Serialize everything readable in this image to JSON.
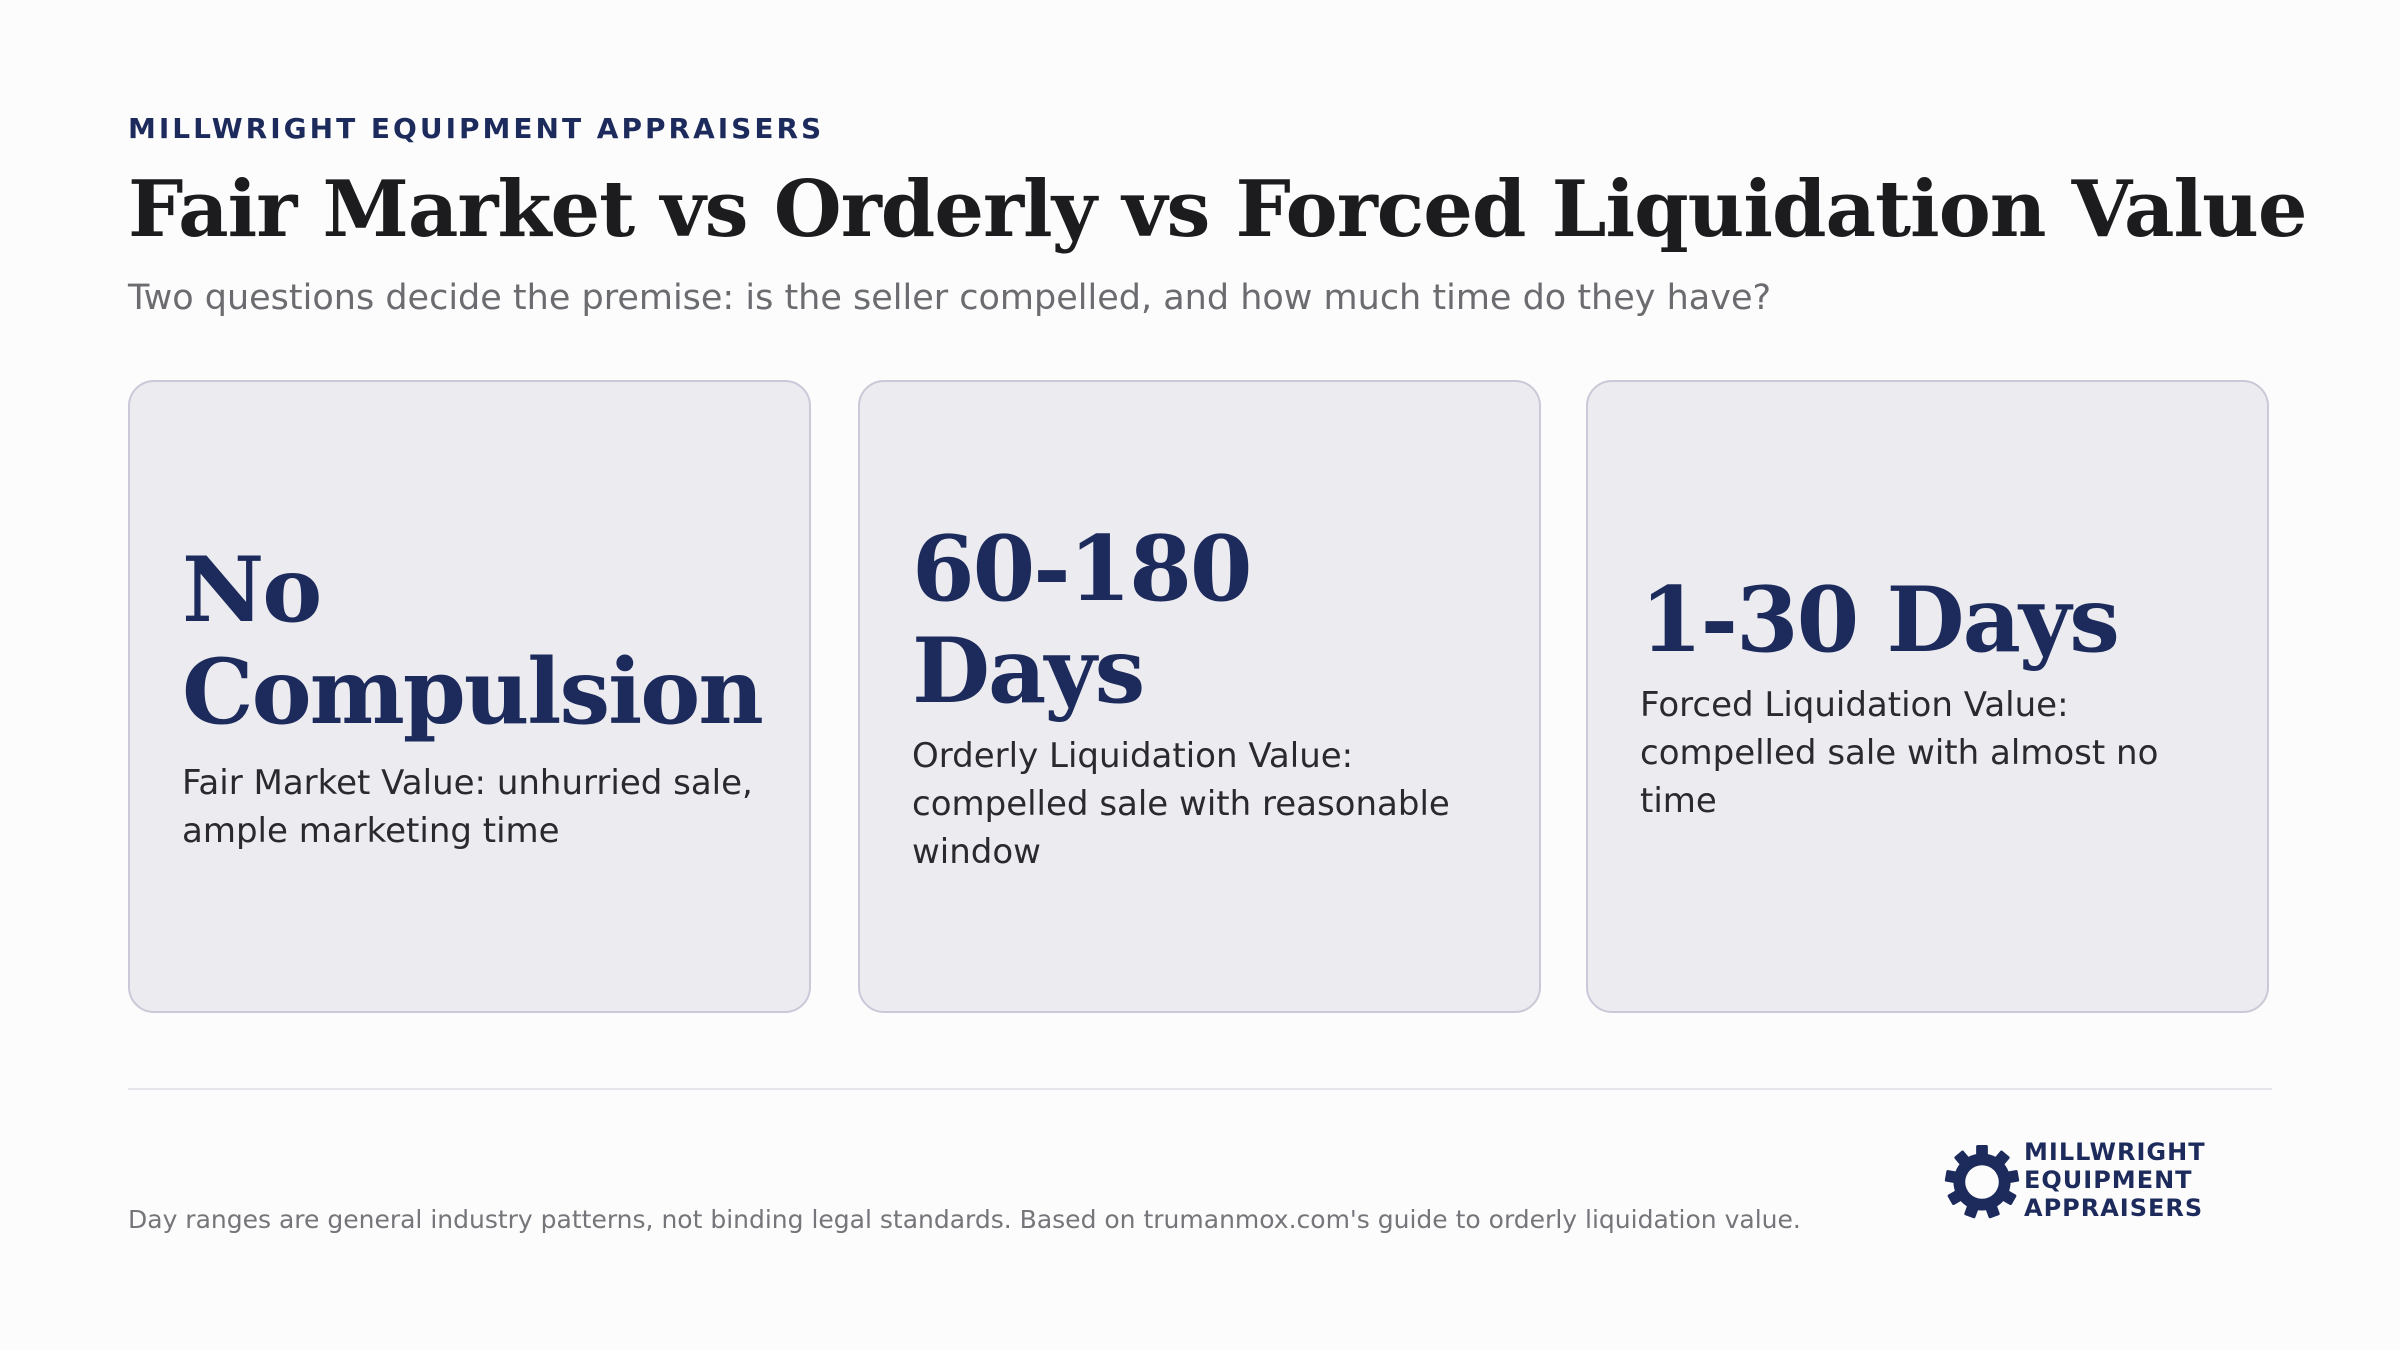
{
  "header": {
    "eyebrow": "MILLWRIGHT EQUIPMENT APPRAISERS",
    "title": "Fair Market vs Orderly vs Forced Liquidation Value",
    "subtitle": "Two questions decide the premise: is the seller compelled, and how much time do they have?"
  },
  "cards": [
    {
      "big_lines": [
        "No",
        "Compulsion"
      ],
      "description": "Fair Market Value: unhurried sale, ample marketing time"
    },
    {
      "big_lines": [
        "60-180 Days"
      ],
      "description": "Orderly Liquidation Value: compelled sale with reasonable window"
    },
    {
      "big_lines": [
        "1-30 Days"
      ],
      "description": "Forced Liquidation Value: compelled sale with almost no time"
    }
  ],
  "footer": {
    "note": "Day ranges are general industry patterns, not binding legal standards. Based on trumanmox.com's guide to orderly liquidation value.",
    "logo": {
      "icon": "gear-icon",
      "lines": [
        "MILLWRIGHT",
        "EQUIPMENT",
        "APPRAISERS"
      ]
    }
  },
  "colors": {
    "accent": "#1d2b5c",
    "card_background": "#ebebf0",
    "card_border": "#c9c9d8",
    "page_background": "#fcfcfd"
  }
}
